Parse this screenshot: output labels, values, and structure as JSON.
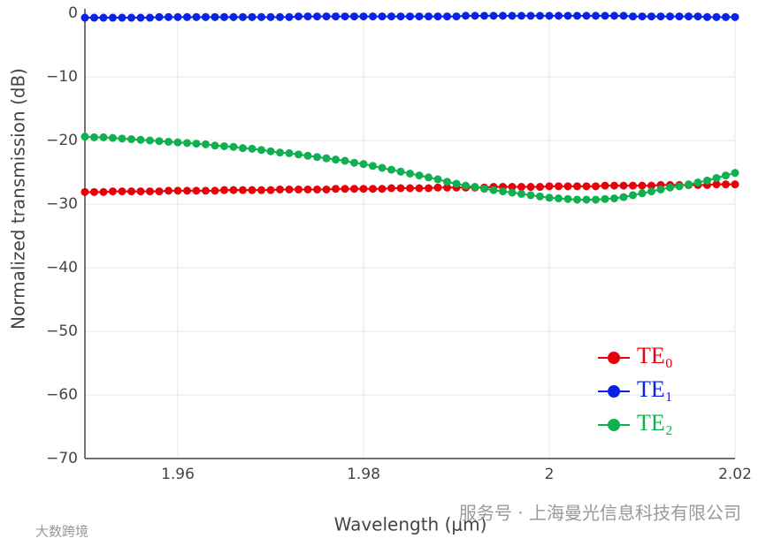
{
  "chart_data": {
    "type": "line",
    "xlabel": "Wavelength (μm)",
    "ylabel": "Normalized transmission (dB)",
    "x": [
      1.95,
      1.951,
      1.952,
      1.953,
      1.954,
      1.955,
      1.956,
      1.957,
      1.958,
      1.959,
      1.96,
      1.961,
      1.962,
      1.963,
      1.964,
      1.965,
      1.966,
      1.967,
      1.968,
      1.969,
      1.97,
      1.971,
      1.972,
      1.973,
      1.974,
      1.975,
      1.976,
      1.977,
      1.978,
      1.979,
      1.98,
      1.981,
      1.982,
      1.983,
      1.984,
      1.985,
      1.986,
      1.987,
      1.988,
      1.989,
      1.99,
      1.991,
      1.992,
      1.993,
      1.994,
      1.995,
      1.996,
      1.997,
      1.998,
      1.999,
      2.0,
      2.001,
      2.002,
      2.003,
      2.004,
      2.005,
      2.006,
      2.007,
      2.008,
      2.009,
      2.01,
      2.011,
      2.012,
      2.013,
      2.014,
      2.015,
      2.016,
      2.017,
      2.018,
      2.019,
      2.02
    ],
    "series": [
      {
        "name": "TE₀",
        "color": "#e8000b",
        "values": [
          -28.1,
          -28.1,
          -28.1,
          -28.0,
          -28.0,
          -28.0,
          -28.0,
          -28.0,
          -28.0,
          -27.9,
          -27.9,
          -27.9,
          -27.9,
          -27.9,
          -27.9,
          -27.8,
          -27.8,
          -27.8,
          -27.8,
          -27.8,
          -27.8,
          -27.7,
          -27.7,
          -27.7,
          -27.7,
          -27.7,
          -27.7,
          -27.6,
          -27.6,
          -27.6,
          -27.6,
          -27.6,
          -27.6,
          -27.5,
          -27.5,
          -27.5,
          -27.5,
          -27.5,
          -27.4,
          -27.4,
          -27.4,
          -27.4,
          -27.4,
          -27.4,
          -27.3,
          -27.3,
          -27.3,
          -27.3,
          -27.3,
          -27.3,
          -27.2,
          -27.2,
          -27.2,
          -27.2,
          -27.2,
          -27.2,
          -27.1,
          -27.1,
          -27.1,
          -27.1,
          -27.1,
          -27.1,
          -27.0,
          -27.0,
          -27.0,
          -27.0,
          -27.0,
          -27.0,
          -26.9,
          -26.9,
          -26.9
        ]
      },
      {
        "name": "TE₁",
        "color": "#0a22e6",
        "values": [
          -0.7,
          -0.7,
          -0.7,
          -0.7,
          -0.7,
          -0.7,
          -0.7,
          -0.7,
          -0.6,
          -0.6,
          -0.6,
          -0.6,
          -0.6,
          -0.6,
          -0.6,
          -0.6,
          -0.6,
          -0.6,
          -0.6,
          -0.6,
          -0.6,
          -0.6,
          -0.6,
          -0.5,
          -0.5,
          -0.5,
          -0.5,
          -0.5,
          -0.5,
          -0.5,
          -0.5,
          -0.5,
          -0.5,
          -0.5,
          -0.5,
          -0.5,
          -0.5,
          -0.5,
          -0.5,
          -0.5,
          -0.5,
          -0.4,
          -0.4,
          -0.4,
          -0.4,
          -0.4,
          -0.4,
          -0.4,
          -0.4,
          -0.4,
          -0.4,
          -0.4,
          -0.4,
          -0.4,
          -0.4,
          -0.4,
          -0.4,
          -0.4,
          -0.4,
          -0.5,
          -0.5,
          -0.5,
          -0.5,
          -0.5,
          -0.5,
          -0.5,
          -0.5,
          -0.6,
          -0.6,
          -0.6,
          -0.6
        ]
      },
      {
        "name": "TE₂",
        "color": "#0fb04f",
        "values": [
          -19.4,
          -19.5,
          -19.5,
          -19.6,
          -19.7,
          -19.8,
          -19.9,
          -20.0,
          -20.1,
          -20.2,
          -20.3,
          -20.4,
          -20.5,
          -20.6,
          -20.8,
          -20.9,
          -21.0,
          -21.2,
          -21.3,
          -21.5,
          -21.7,
          -21.9,
          -22.0,
          -22.2,
          -22.4,
          -22.6,
          -22.8,
          -23.0,
          -23.2,
          -23.5,
          -23.7,
          -24.0,
          -24.3,
          -24.6,
          -24.9,
          -25.2,
          -25.5,
          -25.8,
          -26.1,
          -26.5,
          -26.8,
          -27.1,
          -27.3,
          -27.6,
          -27.8,
          -28.0,
          -28.2,
          -28.4,
          -28.6,
          -28.8,
          -29.0,
          -29.1,
          -29.2,
          -29.3,
          -29.3,
          -29.3,
          -29.2,
          -29.1,
          -28.9,
          -28.6,
          -28.3,
          -28.0,
          -27.7,
          -27.4,
          -27.2,
          -26.9,
          -26.6,
          -26.3,
          -25.9,
          -25.5,
          -25.1
        ]
      }
    ],
    "xlim": [
      1.95,
      2.02
    ],
    "xticks": [
      1.96,
      1.98,
      2,
      2.02
    ],
    "ylim": [
      -70,
      0
    ],
    "yticks": [
      {
        "value": -70,
        "label": "−70"
      },
      {
        "value": -60,
        "label": "−60"
      },
      {
        "value": -50,
        "label": "−50"
      },
      {
        "value": -40,
        "label": "−40"
      },
      {
        "value": -30,
        "label": "−30"
      },
      {
        "value": -20,
        "label": "−20"
      },
      {
        "value": -10,
        "label": "−10"
      },
      0
    ],
    "grid": true,
    "legend": "lower right"
  },
  "watermarks": [
    "服务号 · 上海曼光信息科技有限公司",
    "大数跨境"
  ]
}
